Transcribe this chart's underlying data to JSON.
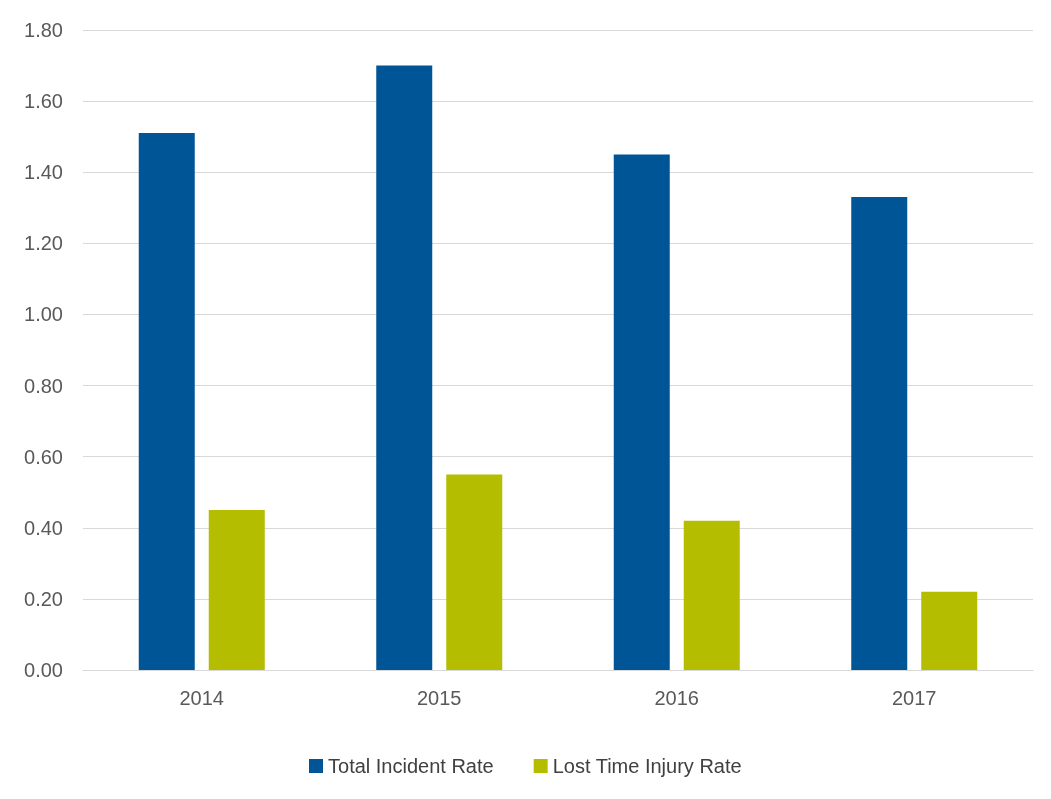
{
  "chart_data": {
    "type": "bar",
    "categories": [
      "2014",
      "2015",
      "2016",
      "2017"
    ],
    "series": [
      {
        "name": "Total Incident Rate",
        "color": "#005596",
        "values": [
          1.51,
          1.7,
          1.45,
          1.33
        ]
      },
      {
        "name": "Lost Time Injury Rate",
        "color": "#b5bd00",
        "values": [
          0.45,
          0.55,
          0.42,
          0.22
        ]
      }
    ],
    "ylim": [
      0,
      1.8
    ],
    "yticks": [
      {
        "value": 0,
        "label": "0.00"
      },
      {
        "value": 0.2,
        "label": "0.20"
      },
      {
        "value": 0.4,
        "label": "0.40"
      },
      {
        "value": 0.6,
        "label": "0.60"
      },
      {
        "value": 0.8,
        "label": "0.80"
      },
      {
        "value": 1,
        "label": "1.00"
      },
      {
        "value": 1.2,
        "label": "1.20"
      },
      {
        "value": 1.4,
        "label": "1.40"
      },
      {
        "value": 1.6,
        "label": "1.60"
      },
      {
        "value": 1.8,
        "label": "1.80"
      }
    ],
    "grid": "y",
    "legend": "bottom"
  }
}
